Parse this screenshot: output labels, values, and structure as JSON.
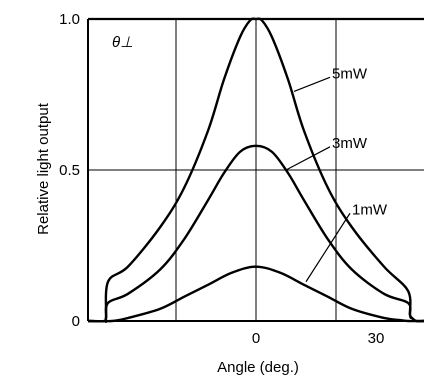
{
  "chart_data": {
    "type": "line",
    "title": "",
    "xlabel": "Angle (deg.)",
    "ylabel": "Relative light output",
    "panel_label": "θ⊥",
    "xlim": [
      -42,
      42
    ],
    "ylim": [
      0,
      1.0
    ],
    "x_ticks": [
      0,
      30
    ],
    "x_tick_labels": [
      "0",
      "30"
    ],
    "y_ticks": [
      0,
      0.5,
      1.0
    ],
    "y_tick_labels": [
      "0",
      "0.5",
      "1.0"
    ],
    "grid": true,
    "series": [
      {
        "name": "5mW",
        "x": [
          -42,
          -38,
          -37.5,
          -37,
          -32,
          -24,
          -18,
          -12,
          -8,
          -4,
          -1.5,
          0,
          1.5,
          4,
          8,
          12,
          18,
          24,
          32,
          38,
          38.5,
          39,
          40,
          42
        ],
        "y": [
          0,
          0,
          0.01,
          0.13,
          0.18,
          0.31,
          0.44,
          0.63,
          0.8,
          0.94,
          0.995,
          1.0,
          0.995,
          0.94,
          0.8,
          0.63,
          0.44,
          0.31,
          0.18,
          0.1,
          0.02,
          0.01,
          0,
          0
        ]
      },
      {
        "name": "3mW",
        "x": [
          -42,
          -38,
          -37.5,
          -37,
          -32,
          -24,
          -18,
          -12,
          -8,
          -4,
          0,
          4,
          8,
          12,
          18,
          24,
          32,
          38,
          38.5,
          39,
          40,
          42
        ],
        "y": [
          0,
          0,
          0.01,
          0.06,
          0.09,
          0.17,
          0.27,
          0.4,
          0.49,
          0.56,
          0.58,
          0.56,
          0.49,
          0.4,
          0.27,
          0.17,
          0.09,
          0.06,
          0.02,
          0.01,
          0,
          0
        ]
      },
      {
        "name": "1mW",
        "x": [
          -42,
          -36,
          -32,
          -24,
          -18,
          -12,
          -6,
          0,
          6,
          12,
          18,
          24,
          32,
          36,
          38,
          40,
          42
        ],
        "y": [
          0,
          0,
          0.01,
          0.04,
          0.08,
          0.12,
          0.16,
          0.18,
          0.16,
          0.12,
          0.08,
          0.04,
          0.01,
          0.003,
          0,
          0,
          0
        ]
      }
    ],
    "annotations": [
      {
        "text": "5mW",
        "series": "5mW",
        "label_x": 19,
        "label_y": 0.82,
        "point_x": 9.5,
        "point_y": 0.76
      },
      {
        "text": "3mW",
        "series": "3mW",
        "label_x": 19,
        "label_y": 0.59,
        "point_x": 7.5,
        "point_y": 0.5
      },
      {
        "text": "1mW",
        "series": "1mW",
        "label_x": 24,
        "label_y": 0.37,
        "point_x": 12.5,
        "point_y": 0.13
      }
    ]
  }
}
